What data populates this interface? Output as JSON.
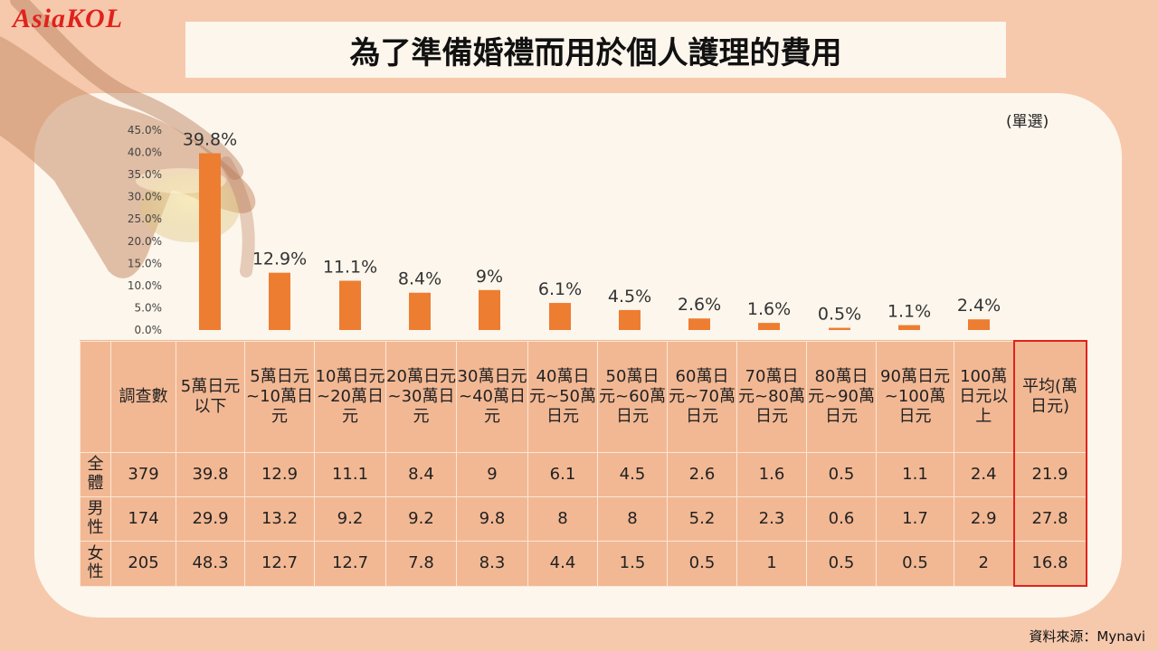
{
  "logo": "AsiaKOL",
  "title": "為了準備婚禮而用於個人護理的費用",
  "unit_note": "(單選)",
  "source": "資料來源：Mynavi",
  "colors": {
    "bar": "#ed7d31",
    "accent": "#e0221c",
    "table_bg": "#f2b894",
    "page_bg": "#f6c9ad"
  },
  "chart_data": {
    "type": "bar",
    "categories": [
      "5萬日元以下",
      "5萬日元~10萬日元",
      "10萬日元~20萬日元",
      "20萬日元~30萬日元",
      "30萬日元~40萬日元",
      "40萬日元~50萬日元",
      "50萬日元~60萬日元",
      "60萬日元~70萬日元",
      "70萬日元~80萬日元",
      "80萬日元~90萬日元",
      "90萬日元~100萬日元",
      "100萬日元以上"
    ],
    "values": [
      39.8,
      12.9,
      11.1,
      8.4,
      9,
      6.1,
      4.5,
      2.6,
      1.6,
      0.5,
      1.1,
      2.4
    ],
    "value_labels": [
      "39.8%",
      "12.9%",
      "11.1%",
      "8.4%",
      "9%",
      "6.1%",
      "4.5%",
      "2.6%",
      "1.6%",
      "0.5%",
      "1.1%",
      "2.4%"
    ],
    "yticks": [
      "0.0%",
      "5.0%",
      "10.0%",
      "15.0%",
      "20.0%",
      "25.0%",
      "30.0%",
      "35.0%",
      "40.0%",
      "45.0%"
    ],
    "ylim": [
      0,
      45
    ]
  },
  "table": {
    "headers": [
      "調查數",
      "5萬日元以下",
      "5萬日元~10萬日元",
      "10萬日元~20萬日元",
      "20萬日元~30萬日元",
      "30萬日元~40萬日元",
      "40萬日元~50萬日元",
      "50萬日元~60萬日元",
      "60萬日元~70萬日元",
      "70萬日元~80萬日元",
      "80萬日元~90萬日元",
      "90萬日元~100萬日元",
      "100萬日元以上",
      "平均(萬日元)"
    ],
    "rows": [
      {
        "label": "全體",
        "values": [
          "379",
          "39.8",
          "12.9",
          "11.1",
          "8.4",
          "9",
          "6.1",
          "4.5",
          "2.6",
          "1.6",
          "0.5",
          "1.1",
          "2.4",
          "21.9"
        ]
      },
      {
        "label": "男性",
        "values": [
          "174",
          "29.9",
          "13.2",
          "9.2",
          "9.2",
          "9.8",
          "8",
          "8",
          "5.2",
          "2.3",
          "0.6",
          "1.7",
          "2.9",
          "27.8"
        ]
      },
      {
        "label": "女性",
        "values": [
          "205",
          "48.3",
          "12.7",
          "12.7",
          "7.8",
          "8.3",
          "4.4",
          "1.5",
          "0.5",
          "1",
          "0.5",
          "0.5",
          "2",
          "16.8"
        ]
      }
    ]
  }
}
